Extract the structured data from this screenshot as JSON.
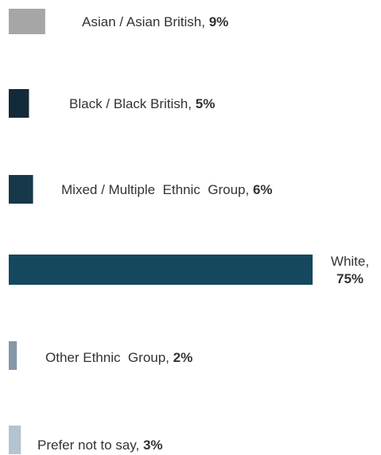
{
  "chart_data": {
    "type": "bar",
    "orientation": "horizontal",
    "categories": [
      "Asian / Asian British",
      "Black / Black British",
      "Mixed / Multiple  Ethnic  Group",
      "White",
      "Other Ethnic  Group",
      "Prefer not to say"
    ],
    "values": [
      9,
      5,
      6,
      75,
      2,
      3
    ],
    "value_labels": [
      "9%",
      "5%",
      "6%",
      "75%",
      "2%",
      "3%"
    ],
    "colors": [
      "#a6a6a6",
      "#132a3a",
      "#16384a",
      "#15485e",
      "#8796a8",
      "#b4c3d0"
    ],
    "xlim": [
      0,
      75
    ],
    "grid": false,
    "title": "",
    "xlabel": "",
    "ylabel": ""
  }
}
